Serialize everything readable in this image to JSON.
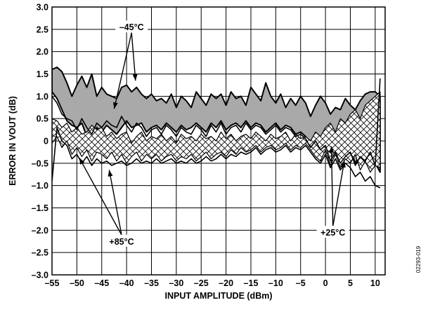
{
  "chart_data": {
    "type": "area",
    "xlabel": "INPUT AMPLITUDE (dBm)",
    "ylabel": "ERROR IN VOUT (dB)",
    "xlim": [
      -55,
      12
    ],
    "ylim": [
      -3.0,
      3.0
    ],
    "x_ticks": [
      -55,
      -50,
      -45,
      -40,
      -35,
      -30,
      -25,
      -20,
      -15,
      -10,
      -5,
      0,
      5,
      10
    ],
    "x_tick_labels": [
      "–55",
      "–50",
      "–45",
      "–40",
      "–35",
      "–30",
      "–25",
      "–20",
      "–15",
      "–10",
      "–5",
      "0",
      "5",
      "10"
    ],
    "y_ticks": [
      3.0,
      2.5,
      2.0,
      1.5,
      1.0,
      0.5,
      0,
      -0.5,
      -1.0,
      -1.5,
      -2.0,
      -2.5,
      -3.0
    ],
    "y_tick_labels": [
      "3.0",
      "2.5",
      "2.0",
      "1.5",
      "1.0",
      "0.5",
      "0",
      "–0.5",
      "–1.0",
      "–1.5",
      "–2.0",
      "–2.5",
      "–3.0"
    ],
    "grid": true,
    "annotations": [
      {
        "text": "–45°C",
        "x": -39,
        "y": 2.55,
        "arrows": [
          [
            -42.5,
            0.72
          ],
          [
            -38.2,
            1.35
          ]
        ]
      },
      {
        "text": "+85°C",
        "x": -41,
        "y": -2.25,
        "arrows": [
          [
            -49.5,
            -0.38
          ],
          [
            -43.5,
            -0.65
          ]
        ]
      },
      {
        "text": "+25°C",
        "x": 1.5,
        "y": -2.05,
        "arrows": [
          [
            1.2,
            -0.12
          ],
          [
            3.8,
            -0.45
          ]
        ]
      }
    ],
    "series": [
      {
        "style": "gray",
        "x": [
          -55,
          -54,
          -53,
          -52,
          -51,
          -50,
          -49,
          -48,
          -47,
          -46,
          -45,
          -44,
          -43,
          -42,
          -41,
          -40,
          -39,
          -38,
          -37,
          -36,
          -35,
          -34,
          -33,
          -32,
          -31,
          -30,
          -29,
          -28,
          -27,
          -26,
          -25,
          -24,
          -23,
          -22,
          -21,
          -20,
          -19,
          -18,
          -17,
          -16,
          -15,
          -14,
          -13,
          -12,
          -11,
          -10,
          -9,
          -8,
          -7,
          -6,
          -5,
          -4,
          -3,
          -2,
          -1,
          0,
          1,
          2,
          3,
          4,
          5,
          6,
          7,
          8,
          9,
          10,
          11
        ],
        "upper": [
          1.6,
          1.65,
          1.55,
          1.3,
          1.0,
          1.25,
          1.45,
          1.2,
          1.5,
          1.0,
          1.2,
          1.05,
          1.0,
          0.95,
          1.2,
          1.25,
          1.1,
          1.2,
          1.05,
          0.95,
          1.05,
          0.9,
          0.95,
          0.85,
          1.05,
          0.75,
          1.0,
          0.9,
          0.75,
          1.1,
          0.95,
          0.8,
          1.05,
          0.95,
          1.05,
          0.8,
          1.1,
          0.95,
          1.0,
          0.8,
          1.2,
          1.05,
          0.9,
          1.3,
          1.0,
          0.85,
          1.05,
          0.75,
          0.95,
          0.8,
          1.0,
          0.85,
          0.55,
          0.8,
          1.0,
          0.85,
          0.6,
          0.75,
          0.7,
          0.95,
          0.8,
          0.7,
          0.9,
          1.05,
          1.1,
          1.1,
          1.0
        ],
        "lower": [
          1.1,
          0.95,
          0.7,
          0.45,
          0.35,
          0.3,
          0.4,
          0.1,
          0.0,
          0.3,
          0.2,
          0.35,
          0.25,
          0.15,
          0.3,
          0.45,
          0.3,
          0.35,
          0.4,
          0.2,
          0.3,
          0.35,
          0.25,
          0.4,
          0.3,
          0.2,
          0.35,
          0.25,
          0.3,
          0.4,
          0.3,
          0.2,
          0.4,
          0.3,
          0.45,
          0.25,
          0.35,
          0.4,
          0.3,
          0.45,
          0.3,
          0.4,
          0.35,
          0.2,
          0.3,
          0.4,
          0.25,
          0.35,
          0.3,
          0.15,
          0.2,
          0.1,
          -0.1,
          0.05,
          -0.15,
          -0.05,
          -0.4,
          -0.2,
          -0.45,
          -0.3,
          -0.2,
          -0.5,
          -0.3,
          -0.4,
          -0.2,
          -0.5,
          -0.7
        ]
      },
      {
        "style": "hatch",
        "x": [
          -55,
          -54,
          -53,
          -52,
          -51,
          -50,
          -49,
          -48,
          -47,
          -46,
          -45,
          -44,
          -43,
          -42,
          -41,
          -40,
          -39,
          -38,
          -37,
          -36,
          -35,
          -34,
          -33,
          -32,
          -31,
          -30,
          -29,
          -28,
          -27,
          -26,
          -25,
          -24,
          -23,
          -22,
          -21,
          -20,
          -19,
          -18,
          -17,
          -16,
          -15,
          -14,
          -13,
          -12,
          -11,
          -10,
          -9,
          -8,
          -7,
          -6,
          -5,
          -4,
          -3,
          -2,
          -1,
          0,
          1,
          2,
          3,
          4,
          5,
          6,
          7,
          8,
          9,
          10,
          11
        ],
        "upper": [
          0.5,
          0.45,
          0.3,
          0.4,
          0.2,
          0.3,
          0.15,
          0.2,
          0.35,
          0.25,
          0.3,
          0.1,
          0.2,
          0.05,
          0.15,
          0.2,
          -0.05,
          0.1,
          0.2,
          0.0,
          0.1,
          0.05,
          0.15,
          0.0,
          0.1,
          -0.05,
          0.15,
          0.05,
          0.1,
          0.0,
          0.15,
          0.05,
          0.1,
          0.0,
          0.2,
          0.05,
          0.15,
          0.0,
          0.1,
          0.15,
          0.05,
          0.2,
          0.1,
          0.0,
          0.15,
          0.05,
          0.1,
          0.2,
          0.0,
          0.15,
          0.05,
          0.1,
          0.0,
          0.2,
          0.1,
          0.3,
          0.4,
          0.2,
          0.5,
          0.4,
          0.6,
          0.7,
          0.5,
          0.8,
          0.9,
          1.0,
          1.1
        ],
        "lower": [
          -0.05,
          0.1,
          -0.15,
          0.0,
          -0.3,
          -0.15,
          -0.35,
          -0.2,
          -0.45,
          -0.25,
          -0.3,
          -0.4,
          -0.25,
          -0.45,
          -0.3,
          -0.5,
          -0.35,
          -0.25,
          -0.45,
          -0.3,
          -0.4,
          -0.3,
          -0.45,
          -0.35,
          -0.3,
          -0.45,
          -0.35,
          -0.4,
          -0.3,
          -0.45,
          -0.35,
          -0.25,
          -0.4,
          -0.3,
          -0.25,
          -0.35,
          -0.2,
          -0.3,
          -0.15,
          -0.25,
          -0.2,
          -0.1,
          -0.25,
          -0.15,
          -0.1,
          -0.2,
          -0.15,
          -0.05,
          -0.2,
          -0.1,
          -0.15,
          -0.05,
          -0.2,
          -0.35,
          -0.45,
          -0.2,
          -0.55,
          -0.3,
          -0.6,
          -0.4,
          -0.5,
          -0.3,
          -0.65,
          -0.45,
          -0.7,
          -0.55,
          -0.6
        ]
      }
    ],
    "lines": [
      {
        "x": [
          -55,
          -54,
          -53,
          -52,
          -51,
          -50,
          -49,
          -48,
          -47,
          -46,
          -45,
          -44,
          -43,
          -42,
          -41,
          -40,
          -39,
          -38,
          -37,
          -36,
          -35,
          -34,
          -33,
          -32,
          -31,
          -30,
          -29,
          -28,
          -27,
          -26,
          -25,
          -24,
          -23,
          -22,
          -21,
          -20,
          -19,
          -18,
          -17,
          -16,
          -15,
          -14,
          -13,
          -12,
          -11,
          -10,
          -9,
          -8,
          -7,
          -6,
          -5,
          -4,
          -3,
          -2,
          -1,
          0,
          1,
          2,
          3,
          4,
          5,
          6,
          7,
          8,
          9,
          10,
          11
        ],
        "y": [
          1.0,
          0.85,
          0.6,
          0.5,
          0.45,
          0.25,
          0.5,
          0.3,
          0.15,
          0.4,
          0.3,
          0.45,
          0.35,
          0.3,
          0.55,
          0.35,
          0.2,
          0.4,
          0.3,
          0.1,
          0.25,
          0.3,
          0.15,
          0.35,
          0.25,
          0.1,
          0.3,
          0.2,
          0.15,
          0.35,
          0.25,
          0.1,
          0.35,
          0.2,
          0.4,
          0.15,
          0.3,
          0.35,
          0.2,
          0.4,
          0.25,
          0.35,
          0.3,
          0.15,
          0.25,
          0.35,
          0.2,
          0.3,
          0.25,
          0.1,
          0.15,
          0.05,
          -0.15,
          0.0,
          -0.2,
          -0.1,
          -0.45,
          -0.25,
          -0.5,
          -0.35,
          -0.25,
          -0.55,
          -0.35,
          -0.45,
          -0.25,
          -0.55,
          1.4
        ]
      },
      {
        "x": [
          -55,
          -54,
          -53,
          -52,
          -51,
          -50,
          -49,
          -48,
          -47,
          -46,
          -45,
          -44,
          -43,
          -42,
          -41,
          -40,
          -39,
          -38,
          -37,
          -36,
          -35,
          -34,
          -33,
          -32,
          -31,
          -30,
          -29,
          -28,
          -27,
          -26,
          -25,
          -24,
          -23,
          -22,
          -21,
          -20,
          -19,
          -18,
          -17,
          -16,
          -15,
          -14,
          -13,
          -12,
          -11,
          -10,
          -9,
          -8,
          -7,
          -6,
          -5,
          -4,
          -3,
          -2,
          -1,
          0,
          1,
          2,
          3,
          4,
          5,
          6,
          7,
          8,
          9,
          10,
          11
        ],
        "y": [
          -0.9,
          0.3,
          0.0,
          -0.1,
          -0.4,
          -0.3,
          -0.5,
          -0.35,
          -0.55,
          -0.4,
          -0.5,
          -0.45,
          -0.55,
          -0.5,
          -0.45,
          -0.55,
          -0.5,
          -0.4,
          -0.5,
          -0.45,
          -0.5,
          -0.4,
          -0.5,
          -0.45,
          -0.4,
          -0.5,
          -0.45,
          -0.5,
          -0.4,
          -0.5,
          -0.45,
          -0.35,
          -0.45,
          -0.4,
          -0.3,
          -0.4,
          -0.3,
          -0.35,
          -0.25,
          -0.3,
          -0.25,
          -0.15,
          -0.3,
          -0.2,
          -0.15,
          -0.25,
          -0.2,
          -0.1,
          -0.25,
          -0.15,
          -0.2,
          -0.1,
          -0.25,
          -0.4,
          -0.5,
          -0.3,
          -0.6,
          -0.4,
          -0.65,
          -0.5,
          -0.6,
          -0.8,
          -0.7,
          -0.9,
          -0.8,
          -1.0,
          -1.05
        ]
      }
    ]
  },
  "figure_code": "02293-019"
}
